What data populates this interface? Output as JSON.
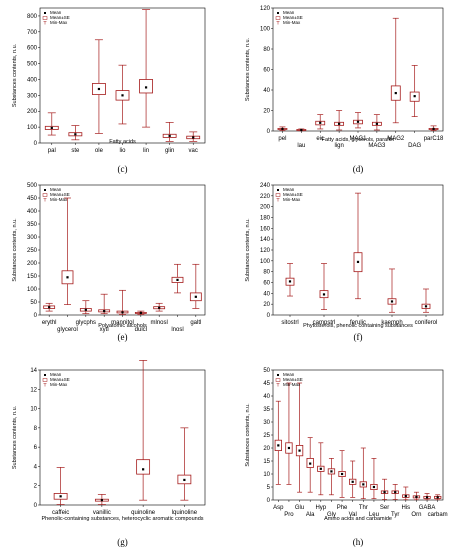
{
  "colors": {
    "box": "#a51c1c",
    "axis": "#000000",
    "background": "#ffffff"
  },
  "legend": {
    "mean": "Mean",
    "se": "Mean±SE",
    "minmax": "Min-Max"
  },
  "chart_data": [
    {
      "type": "box",
      "panel_label": "(c)",
      "xlabel": "Fatty acids",
      "ylabel": "Substances contents, n.u.",
      "ylim": [
        0,
        850
      ],
      "yticks": [
        0,
        100,
        200,
        300,
        400,
        500,
        600,
        700,
        800
      ],
      "categories": [
        "pal",
        "ste",
        "ole",
        "lio",
        "lin",
        "glin",
        "vac"
      ],
      "label_rows": [
        0,
        0,
        0,
        0,
        0,
        0,
        0
      ],
      "mean": [
        95,
        55,
        340,
        300,
        350,
        45,
        35
      ],
      "se_low": [
        85,
        45,
        305,
        270,
        315,
        35,
        27
      ],
      "se_high": [
        105,
        65,
        375,
        330,
        400,
        55,
        43
      ],
      "min": [
        50,
        20,
        60,
        120,
        100,
        10,
        10
      ],
      "max": [
        190,
        110,
        650,
        490,
        840,
        130,
        70
      ]
    },
    {
      "type": "box",
      "panel_label": "(d)",
      "xlabel": "Fatty acids, glycerols, paraffin",
      "ylabel": "Substances contents, n.u.",
      "ylim": [
        0,
        120
      ],
      "yticks": [
        0,
        20,
        40,
        60,
        80,
        100,
        120
      ],
      "categories": [
        "pel",
        "lau",
        "eic",
        "lign",
        "MAG1",
        "MAG3",
        "MAG2",
        "DAG",
        "parC18"
      ],
      "label_rows": [
        0,
        1,
        0,
        1,
        0,
        1,
        0,
        1,
        0
      ],
      "mean": [
        2,
        1,
        8,
        7,
        9,
        7,
        37,
        34,
        2
      ],
      "se_low": [
        1.5,
        0.5,
        6,
        5.5,
        7,
        5.5,
        30,
        29,
        1.5
      ],
      "se_high": [
        2.5,
        1.5,
        9.5,
        8.5,
        10.5,
        8.5,
        44,
        38,
        2.5
      ],
      "min": [
        0.5,
        0.2,
        2,
        1,
        3,
        1,
        8,
        14,
        0.5
      ],
      "max": [
        4,
        2,
        16,
        20,
        18,
        16,
        110,
        64,
        5
      ]
    },
    {
      "type": "box",
      "panel_label": "(e)",
      "xlabel": "Polyatomic alcohols",
      "ylabel": "Substances contents, n.u.",
      "ylim": [
        0,
        500
      ],
      "yticks": [
        0,
        50,
        100,
        150,
        200,
        250,
        300,
        350,
        400,
        450,
        500
      ],
      "categories": [
        "erythl",
        "glycerol",
        "glycphs",
        "xytl",
        "mannitol",
        "dulcl",
        "mlnosl",
        "lnosl",
        "galtl"
      ],
      "label_rows": [
        0,
        1,
        0,
        1,
        0,
        1,
        0,
        1,
        0
      ],
      "mean": [
        30,
        145,
        20,
        15,
        10,
        8,
        28,
        135,
        70
      ],
      "se_low": [
        25,
        120,
        15,
        12,
        8,
        6,
        24,
        125,
        55
      ],
      "se_high": [
        35,
        170,
        25,
        20,
        15,
        10,
        32,
        145,
        85
      ],
      "min": [
        15,
        40,
        5,
        5,
        2,
        2,
        15,
        85,
        25
      ],
      "max": [
        45,
        450,
        55,
        80,
        95,
        15,
        45,
        195,
        195
      ]
    },
    {
      "type": "box",
      "panel_label": "(f)",
      "xlabel": "Phytosterols, phenolic containing substances",
      "ylabel": "Substances contents, n.u.",
      "ylim": [
        0,
        240
      ],
      "yticks": [
        0,
        20,
        40,
        60,
        80,
        100,
        120,
        140,
        160,
        180,
        200,
        220,
        240
      ],
      "categories": [
        "sitostrl",
        "campstrl",
        "ferulic",
        "kaemph",
        "coniferol"
      ],
      "label_rows": [
        0,
        0,
        0,
        0,
        0
      ],
      "mean": [
        62,
        38,
        98,
        25,
        16
      ],
      "se_low": [
        55,
        32,
        80,
        20,
        12
      ],
      "se_high": [
        68,
        45,
        115,
        30,
        20
      ],
      "min": [
        35,
        10,
        30,
        5,
        5
      ],
      "max": [
        95,
        95,
        225,
        85,
        48
      ]
    },
    {
      "type": "box",
      "panel_label": "(g)",
      "xlabel": "Phenolic-containing substances, heterocyclic aromatic compounds",
      "ylabel": "Substances contents, n.u.",
      "ylim": [
        0,
        14
      ],
      "yticks": [
        0,
        2,
        4,
        6,
        8,
        10,
        12,
        14
      ],
      "categories": [
        "caffeic",
        "vanillic",
        "quinoline",
        "lquinoline"
      ],
      "label_rows": [
        0,
        0,
        0,
        0
      ],
      "mean": [
        0.9,
        0.5,
        3.7,
        2.6
      ],
      "se_low": [
        0.6,
        0.4,
        3.2,
        2.2
      ],
      "se_high": [
        1.2,
        0.6,
        4.7,
        3.1
      ],
      "min": [
        0.05,
        0.05,
        0.5,
        0.5
      ],
      "max": [
        3.9,
        1.1,
        15,
        8
      ]
    },
    {
      "type": "box",
      "panel_label": "(h)",
      "xlabel": "Amino acids and carbamide",
      "ylabel": "Substances contents, n.u.",
      "ylim": [
        0,
        50
      ],
      "yticks": [
        0,
        5,
        10,
        15,
        20,
        25,
        30,
        35,
        40,
        45,
        50
      ],
      "categories": [
        "Asp",
        "Pro",
        "Glu",
        "Ala",
        "Hyp",
        "Gly",
        "Phe",
        "Val",
        "Thr",
        "Leu",
        "Ser",
        "Tyr",
        "His",
        "Orn",
        "GABA",
        "carbam"
      ],
      "label_rows": [
        0,
        1,
        0,
        1,
        0,
        1,
        0,
        1,
        0,
        1,
        0,
        1,
        0,
        1,
        0,
        1
      ],
      "mean": [
        21,
        20,
        19,
        14,
        12,
        11,
        10,
        7,
        6,
        5,
        3,
        3,
        1.5,
        1.2,
        1,
        1
      ],
      "se_low": [
        19,
        18,
        17,
        12.5,
        11,
        10,
        9,
        6,
        5,
        4,
        2.5,
        2.5,
        1,
        0.8,
        0.6,
        0.6
      ],
      "se_high": [
        23,
        22,
        21,
        16,
        13,
        12,
        11,
        8,
        7,
        6,
        3.5,
        3.5,
        2,
        1.6,
        1.4,
        1.4
      ],
      "min": [
        6,
        6,
        3,
        3,
        2,
        2,
        1,
        1,
        0.5,
        0.5,
        0.2,
        0.2,
        0.1,
        0.1,
        0.1,
        0.1
      ],
      "max": [
        38,
        45,
        45,
        24,
        22,
        16,
        19,
        15,
        20,
        16,
        8,
        6,
        5,
        3,
        2.5,
        2
      ]
    }
  ]
}
